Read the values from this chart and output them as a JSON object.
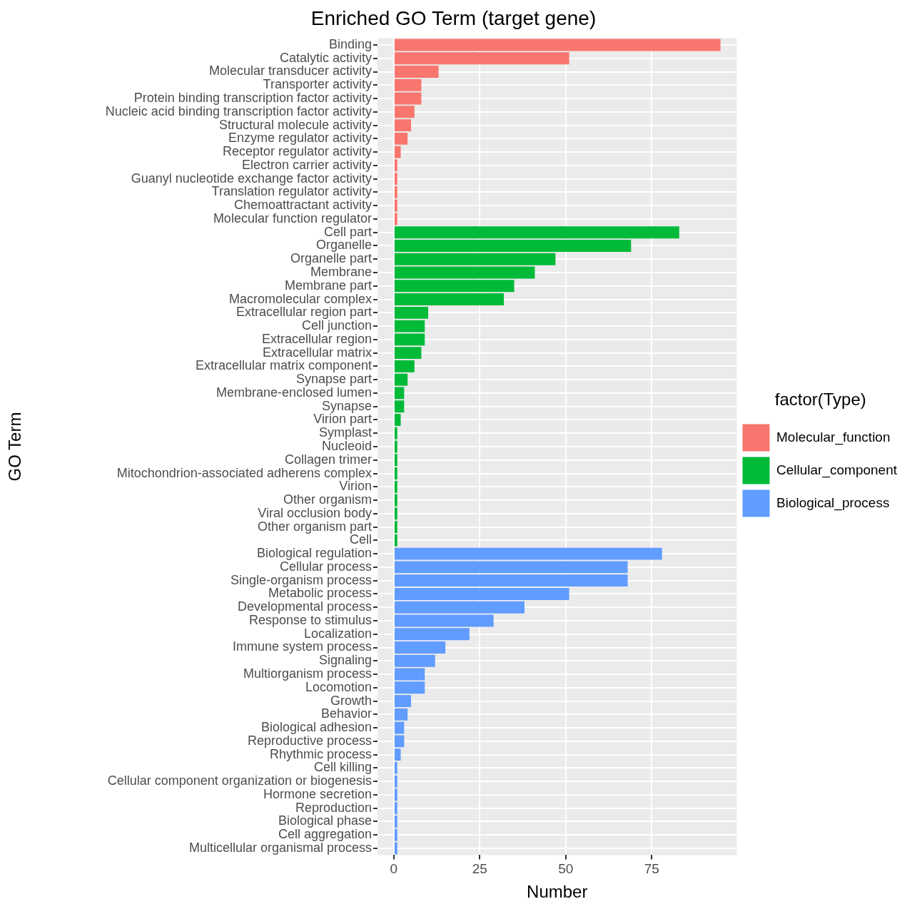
{
  "chart_data": {
    "type": "bar",
    "orientation": "horizontal",
    "title": "Enriched GO Term (target gene)",
    "xlabel": "Number",
    "ylabel": "GO Term",
    "legend_title": "factor(Type)",
    "legend": "right",
    "grid": true,
    "categories": [
      "Binding",
      "Catalytic activity",
      "Molecular transducer activity",
      "Transporter activity",
      "Protein binding transcription factor activity",
      "Nucleic acid binding transcription factor activity",
      "Structural molecule activity",
      "Enzyme regulator activity",
      "Receptor regulator activity",
      "Electron carrier activity",
      "Guanyl nucleotide exchange factor activity",
      "Translation regulator activity",
      "Chemoattractant activity",
      "Molecular function regulator",
      "Cell part",
      "Organelle",
      "Organelle part",
      "Membrane",
      "Membrane part",
      "Macromolecular complex",
      "Extracellular region part",
      "Cell junction",
      "Extracellular region",
      "Extracellular matrix",
      "Extracellular matrix component",
      "Synapse part",
      "Membrane-enclosed lumen",
      "Synapse",
      "Virion part",
      "Symplast",
      "Nucleoid",
      "Collagen trimer",
      "Mitochondrion-associated adherens complex",
      "Virion",
      "Other organism",
      "Viral occlusion body",
      "Other organism part",
      "Cell",
      "Biological regulation",
      "Cellular process",
      "Single-organism process",
      "Metabolic process",
      "Developmental process",
      "Response to stimulus",
      "Localization",
      "Immune system process",
      "Signaling",
      "Multiorganism process",
      "Locomotion",
      "Growth",
      "Behavior",
      "Biological adhesion",
      "Reproductive process",
      "Rhythmic process",
      "Cell killing",
      "Cellular component organization or biogenesis",
      "Hormone secretion",
      "Reproduction",
      "Biological phase",
      "Cell aggregation",
      "Multicellular organismal process"
    ],
    "series": [
      {
        "name": "Molecular_function",
        "color": "#f8766d",
        "values": [
          95,
          51,
          13,
          8,
          8,
          6,
          5,
          4,
          2,
          1,
          1,
          1,
          1,
          1,
          null,
          null,
          null,
          null,
          null,
          null,
          null,
          null,
          null,
          null,
          null,
          null,
          null,
          null,
          null,
          null,
          null,
          null,
          null,
          null,
          null,
          null,
          null,
          null,
          null,
          null,
          null,
          null,
          null,
          null,
          null,
          null,
          null,
          null,
          null,
          null,
          null,
          null,
          null,
          null,
          null,
          null,
          null,
          null,
          null,
          null,
          null
        ]
      },
      {
        "name": "Cellular_component",
        "color": "#00ba38",
        "values": [
          null,
          null,
          null,
          null,
          null,
          null,
          null,
          null,
          null,
          null,
          null,
          null,
          null,
          null,
          83,
          69,
          47,
          41,
          35,
          32,
          10,
          9,
          9,
          8,
          6,
          4,
          3,
          3,
          2,
          1,
          1,
          1,
          1,
          1,
          1,
          1,
          1,
          1,
          null,
          null,
          null,
          null,
          null,
          null,
          null,
          null,
          null,
          null,
          null,
          null,
          null,
          null,
          null,
          null,
          null,
          null,
          null,
          null,
          null,
          null,
          null
        ]
      },
      {
        "name": "Biological_process",
        "color": "#619cff",
        "values": [
          null,
          null,
          null,
          null,
          null,
          null,
          null,
          null,
          null,
          null,
          null,
          null,
          null,
          null,
          null,
          null,
          null,
          null,
          null,
          null,
          null,
          null,
          null,
          null,
          null,
          null,
          null,
          null,
          null,
          null,
          null,
          null,
          null,
          null,
          null,
          null,
          null,
          null,
          78,
          68,
          68,
          51,
          38,
          29,
          22,
          15,
          12,
          9,
          9,
          5,
          4,
          3,
          3,
          2,
          1,
          1,
          1,
          1,
          1,
          1,
          1
        ]
      }
    ],
    "xlim": [
      -4.75,
      99.75
    ],
    "xticks": [
      0,
      25,
      50,
      75
    ]
  }
}
